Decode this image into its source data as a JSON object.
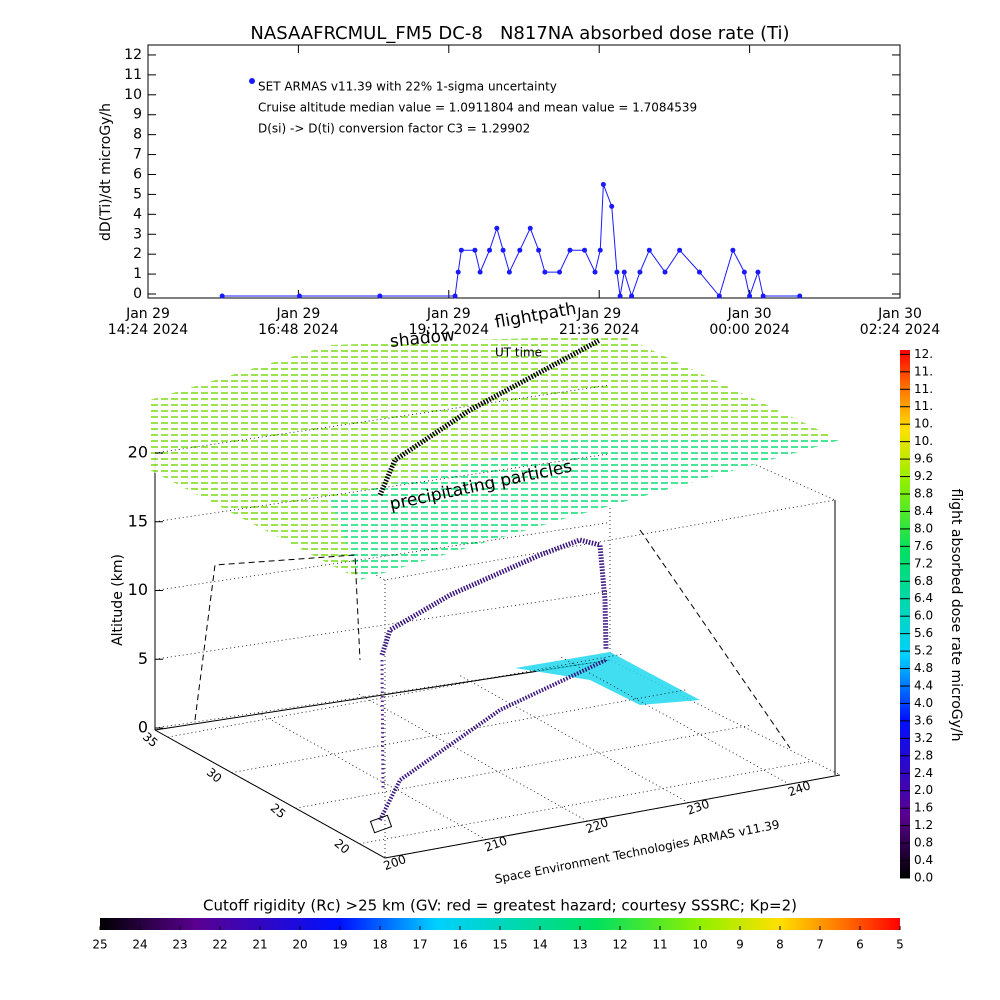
{
  "chart_data": [
    {
      "type": "line",
      "title": "NASAAFRCMUL_FM5 DC-8   N817NA absorbed dose rate (Ti)",
      "ylabel": "dD(Ti)/dt microGy/h",
      "color": "#1a1aff",
      "annotations": [
        "SET ARMAS v11.39 with 22% 1-sigma uncertainty",
        "Cruise altitude median value = 1.0911804 and mean value = 1.7084539",
        "D(si) -> D(ti) conversion factor C3 = 1.29902"
      ],
      "x": [
        "2024-01-29T15:35",
        "2024-01-29T16:49",
        "2024-01-29T18:06",
        "2024-01-29T19:18",
        "2024-01-29T19:21",
        "2024-01-29T19:24",
        "2024-01-29T19:37",
        "2024-01-29T19:42",
        "2024-01-29T19:51",
        "2024-01-29T19:58",
        "2024-01-29T20:04",
        "2024-01-29T20:10",
        "2024-01-29T20:20",
        "2024-01-29T20:30",
        "2024-01-29T20:38",
        "2024-01-29T20:44",
        "2024-01-29T20:58",
        "2024-01-29T21:08",
        "2024-01-29T21:22",
        "2024-01-29T21:32",
        "2024-01-29T21:37",
        "2024-01-29T21:40",
        "2024-01-29T21:48",
        "2024-01-29T21:53",
        "2024-01-29T21:56",
        "2024-01-29T22:00",
        "2024-01-29T22:07",
        "2024-01-29T22:15",
        "2024-01-29T22:24",
        "2024-01-29T22:39",
        "2024-01-29T22:53",
        "2024-01-29T23:12",
        "2024-01-29T23:31",
        "2024-01-29T23:44",
        "2024-01-29T23:55",
        "2024-01-30T00:00",
        "2024-01-30T00:08",
        "2024-01-30T00:13",
        "2024-01-30T00:48"
      ],
      "values": [
        -0.1,
        -0.1,
        -0.1,
        -0.1,
        1.1,
        2.2,
        2.2,
        1.1,
        2.2,
        3.3,
        2.2,
        1.1,
        2.2,
        3.3,
        2.2,
        1.1,
        1.1,
        2.2,
        2.2,
        1.1,
        2.2,
        5.5,
        4.4,
        1.1,
        -0.1,
        1.1,
        -0.1,
        1.1,
        2.2,
        1.1,
        2.2,
        1.1,
        -0.1,
        2.2,
        1.1,
        -0.1,
        1.1,
        -0.1,
        -0.1
      ],
      "xlim": [
        "2024-01-29T14:24",
        "2024-01-30T02:24"
      ],
      "xticks": [
        {
          "value": "2024-01-29T14:24",
          "label": [
            "Jan 29",
            "14:24 2024"
          ]
        },
        {
          "value": "2024-01-29T16:48",
          "label": [
            "Jan 29",
            "16:48 2024"
          ]
        },
        {
          "value": "2024-01-29T19:12",
          "label": [
            "Jan 29",
            "19:12 2024"
          ]
        },
        {
          "value": "2024-01-29T21:36",
          "label": [
            "Jan 29",
            "21:36 2024"
          ]
        },
        {
          "value": "2024-01-30T00:00",
          "label": [
            "Jan 30",
            "00:00 2024"
          ]
        },
        {
          "value": "2024-01-30T02:24",
          "label": [
            "Jan 30",
            "02:24 2024"
          ]
        }
      ],
      "ylim": [
        -0.2,
        12.5
      ],
      "yticks": [
        0,
        1,
        2,
        3,
        4,
        5,
        6,
        7,
        8,
        9,
        10,
        11,
        12
      ]
    },
    {
      "type": "scatter3d",
      "zlabel": "Altitude (km)",
      "zlim": [
        0,
        20
      ],
      "zticks": [
        0,
        5,
        10,
        15,
        20
      ],
      "xlim": [
        200,
        245
      ],
      "xticks": [
        200,
        210,
        220,
        230,
        240
      ],
      "ylim": [
        18,
        36
      ],
      "yticks": [
        20,
        25,
        30,
        35
      ],
      "annotations": [
        "shadow",
        "flightpath",
        "UT time",
        "precipitating particles"
      ],
      "credit": "Space Environment Technologies ARMAS v11.39",
      "colorbar": {
        "label": "flight absorbed dose rate microGy/h",
        "lim": [
          0,
          12.1
        ],
        "ticks": [
          {
            "value": 0,
            "label": "0.0"
          },
          {
            "value": 0.4,
            "label": "0.4"
          },
          {
            "value": 0.8,
            "label": "0.8"
          },
          {
            "value": 1.2,
            "label": "1.2"
          },
          {
            "value": 1.6,
            "label": "1.6"
          },
          {
            "value": 2,
            "label": "2.0"
          },
          {
            "value": 2.4,
            "label": "2.4"
          },
          {
            "value": 2.8,
            "label": "2.8"
          },
          {
            "value": 3.2,
            "label": "3.2"
          },
          {
            "value": 3.6,
            "label": "3.6"
          },
          {
            "value": 4,
            "label": "4.0"
          },
          {
            "value": 4.4,
            "label": "4.4"
          },
          {
            "value": 4.8,
            "label": "4.8"
          },
          {
            "value": 5.2,
            "label": "5.2"
          },
          {
            "value": 5.6,
            "label": "5.6"
          },
          {
            "value": 6,
            "label": "6.0"
          },
          {
            "value": 6.4,
            "label": "6.4"
          },
          {
            "value": 6.8,
            "label": "6.8"
          },
          {
            "value": 7.2,
            "label": "7.2"
          },
          {
            "value": 7.6,
            "label": "7.6"
          },
          {
            "value": 8,
            "label": "8.0"
          },
          {
            "value": 8.4,
            "label": "8.4"
          },
          {
            "value": 8.8,
            "label": "8.8"
          },
          {
            "value": 9.2,
            "label": "9.2"
          },
          {
            "value": 9.6,
            "label": "9.6"
          },
          {
            "value": 10,
            "label": "10."
          },
          {
            "value": 10.4,
            "label": "10."
          },
          {
            "value": 10.8,
            "label": "11."
          },
          {
            "value": 11.2,
            "label": "11."
          },
          {
            "value": 11.6,
            "label": "11."
          },
          {
            "value": 12,
            "label": "12."
          }
        ]
      },
      "colorbar2": {
        "label": "Cutoff rigidity (Rc) >25 km (GV: red = greatest hazard; courtesy SSSRC; Kp=2)",
        "lim": [
          25,
          5
        ],
        "ticks": [
          25,
          24,
          23,
          22,
          21,
          20,
          19,
          18,
          17,
          16,
          15,
          14,
          13,
          12,
          11,
          10,
          9,
          8,
          7,
          6,
          5
        ]
      }
    }
  ]
}
